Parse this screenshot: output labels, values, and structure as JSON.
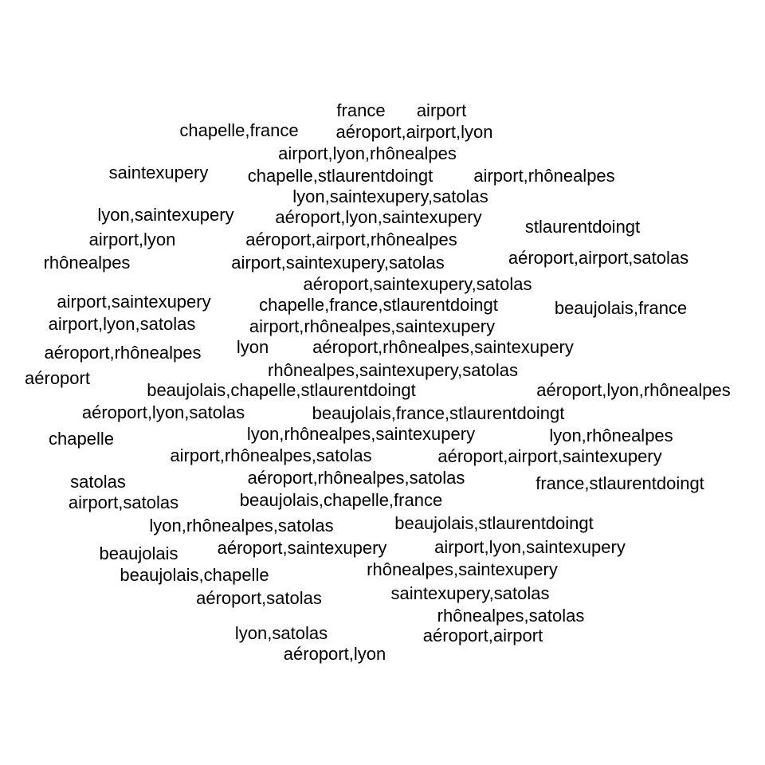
{
  "text_color": "#000000",
  "background_color": "#ffffff",
  "terms": [
    "france",
    "airport",
    "chapelle,france",
    "aéroport,airport,lyon",
    "airport,lyon,rhônealpes",
    "saintexupery",
    "chapelle,stlaurentdoingt",
    "airport,rhônealpes",
    "lyon,saintexupery,satolas",
    "lyon,saintexupery",
    "aéroport,lyon,saintexupery",
    "stlaurentdoingt",
    "airport,lyon",
    "aéroport,airport,rhônealpes",
    "rhônealpes",
    "airport,saintexupery,satolas",
    "aéroport,airport,satolas",
    "aéroport,saintexupery,satolas",
    "airport,saintexupery",
    "chapelle,france,stlaurentdoingt",
    "beaujolais,france",
    "airport,lyon,satolas",
    "airport,rhônealpes,saintexupery",
    "aéroport,rhônealpes",
    "lyon",
    "aéroport,rhônealpes,saintexupery",
    "rhônealpes,saintexupery,satolas",
    "aéroport",
    "beaujolais,chapelle,stlaurentdoingt",
    "aéroport,lyon,rhônealpes",
    "aéroport,lyon,satolas",
    "beaujolais,france,stlaurentdoingt",
    "chapelle",
    "lyon,rhônealpes,saintexupery",
    "lyon,rhônealpes",
    "airport,rhônealpes,satolas",
    "aéroport,airport,saintexupery",
    "satolas",
    "aéroport,rhônealpes,satolas",
    "france,stlaurentdoingt",
    "airport,satolas",
    "beaujolais,chapelle,france",
    "lyon,rhônealpes,satolas",
    "beaujolais,stlaurentdoingt",
    "beaujolais",
    "aéroport,saintexupery",
    "airport,lyon,saintexupery",
    "beaujolais,chapelle",
    "rhônealpes,saintexupery",
    "aéroport,satolas",
    "saintexupery,satolas",
    "rhônealpes,satolas",
    "lyon,satolas",
    "aéroport,airport",
    "aéroport,lyon"
  ]
}
